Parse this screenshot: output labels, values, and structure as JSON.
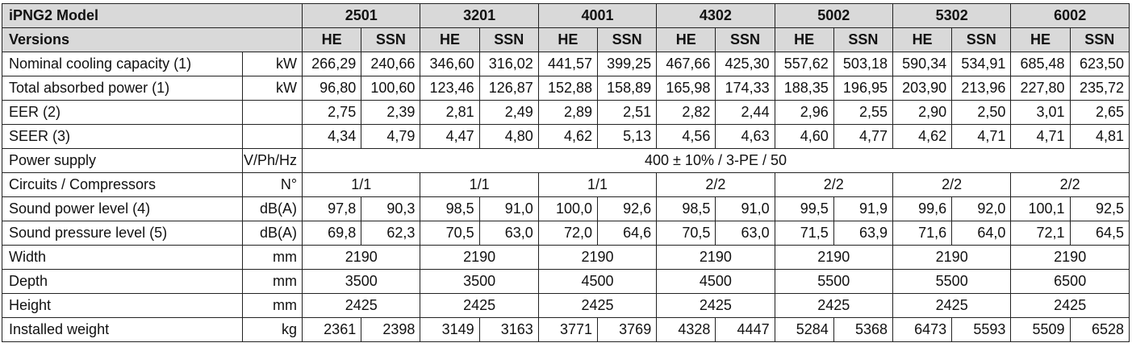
{
  "header": {
    "model_label": "iPNG2 Model",
    "versions_label": "Versions",
    "models": [
      "2501",
      "3201",
      "4001",
      "4302",
      "5002",
      "5302",
      "6002"
    ],
    "versions": [
      "HE",
      "SSN"
    ]
  },
  "rows": [
    {
      "label": "Nominal cooling capacity (1)",
      "unit": "kW",
      "values": [
        "266,29",
        "240,66",
        "346,60",
        "316,02",
        "441,57",
        "399,25",
        "467,66",
        "425,30",
        "557,62",
        "503,18",
        "590,34",
        "534,91",
        "685,48",
        "623,50"
      ]
    },
    {
      "label": "Total absorbed power (1)",
      "unit": "kW",
      "values": [
        "96,80",
        "100,60",
        "123,46",
        "126,87",
        "152,88",
        "158,89",
        "165,98",
        "174,33",
        "188,35",
        "196,95",
        "203,90",
        "213,96",
        "227,80",
        "235,72"
      ]
    },
    {
      "label": "EER (2)",
      "unit": "",
      "values": [
        "2,75",
        "2,39",
        "2,81",
        "2,49",
        "2,89",
        "2,51",
        "2,82",
        "2,44",
        "2,96",
        "2,55",
        "2,90",
        "2,50",
        "3,01",
        "2,65"
      ]
    },
    {
      "label": "SEER (3)",
      "unit": "",
      "values": [
        "4,34",
        "4,79",
        "4,47",
        "4,80",
        "4,62",
        "5,13",
        "4,56",
        "4,63",
        "4,60",
        "4,77",
        "4,62",
        "4,71",
        "4,71",
        "4,81"
      ]
    },
    {
      "label": "Power supply",
      "unit": "V/Ph/Hz",
      "span_all": "400 ± 10% / 3-PE / 50"
    },
    {
      "label": "Circuits / Compressors",
      "unit": "N°",
      "per_model": [
        "1/1",
        "1/1",
        "1/1",
        "2/2",
        "2/2",
        "2/2",
        "2/2"
      ]
    },
    {
      "label": "Sound power level (4)",
      "unit": "dB(A)",
      "values": [
        "97,8",
        "90,3",
        "98,5",
        "91,0",
        "100,0",
        "92,6",
        "98,5",
        "91,0",
        "99,5",
        "91,9",
        "99,6",
        "92,0",
        "100,1",
        "92,5"
      ]
    },
    {
      "label": "Sound pressure level (5)",
      "unit": "dB(A)",
      "values": [
        "69,8",
        "62,3",
        "70,5",
        "63,0",
        "72,0",
        "64,6",
        "70,5",
        "63,0",
        "71,5",
        "63,9",
        "71,6",
        "64,0",
        "72,1",
        "64,5"
      ]
    },
    {
      "label": "Width",
      "unit": "mm",
      "per_model": [
        "2190",
        "2190",
        "2190",
        "2190",
        "2190",
        "2190",
        "2190"
      ]
    },
    {
      "label": "Depth",
      "unit": "mm",
      "per_model": [
        "3500",
        "3500",
        "4500",
        "4500",
        "5500",
        "5500",
        "6500"
      ]
    },
    {
      "label": "Height",
      "unit": "mm",
      "per_model": [
        "2425",
        "2425",
        "2425",
        "2425",
        "2425",
        "2425",
        "2425"
      ]
    },
    {
      "label": "Installed weight",
      "unit": "kg",
      "values": [
        "2361",
        "2398",
        "3149",
        "3163",
        "3771",
        "3769",
        "4328",
        "4447",
        "5284",
        "5368",
        "6473",
        "5593",
        "5509",
        "6528"
      ]
    }
  ]
}
